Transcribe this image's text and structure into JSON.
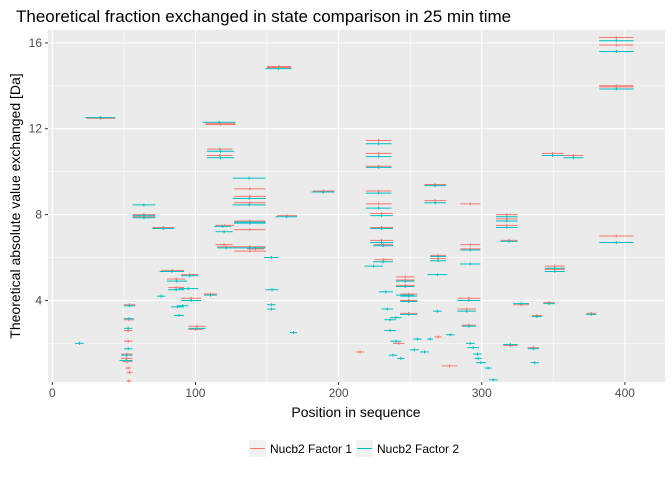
{
  "chart_data": {
    "type": "scatter",
    "title": "Theoretical fraction exchanged in state comparison in 25 min time",
    "xlabel": "Position in sequence",
    "ylabel": "Theoretical absolute value exchanged [Da]",
    "xlim": [
      -3,
      428
    ],
    "ylim": [
      0.2,
      16.6
    ],
    "x_ticks": [
      0,
      100,
      200,
      300,
      400
    ],
    "y_ticks": [
      4,
      8,
      12,
      16
    ],
    "grid": true,
    "legend_position": "bottom",
    "colors": {
      "Nucb2 Factor 1": "#F8766D",
      "Nucb2 Factor 2": "#00BFC4",
      "panel": "#EBEBEB",
      "grid": "#FFFFFF"
    },
    "series": [
      {
        "name": "Nucb2 Factor 1",
        "segments": [
          [
            24,
            44,
            12.5
          ],
          [
            24,
            44,
            12.48
          ],
          [
            107,
            128,
            12.25
          ],
          [
            107,
            128,
            12.2
          ],
          [
            108,
            126,
            11.05
          ],
          [
            108,
            126,
            10.75
          ],
          [
            127,
            149,
            9.2
          ],
          [
            127,
            149,
            8.85
          ],
          [
            127,
            149,
            8.55
          ],
          [
            127,
            149,
            7.7
          ],
          [
            127,
            149,
            7.3
          ],
          [
            127,
            149,
            6.5
          ],
          [
            127,
            149,
            6.3
          ],
          [
            150,
            167,
            14.9
          ],
          [
            150,
            167,
            14.85
          ],
          [
            157,
            171,
            7.95
          ],
          [
            182,
            197,
            9.1
          ],
          [
            182,
            197,
            9.05
          ],
          [
            219,
            237,
            11.45
          ],
          [
            219,
            237,
            10.85
          ],
          [
            219,
            237,
            10.25
          ],
          [
            219,
            237,
            9.1
          ],
          [
            219,
            237,
            8.5
          ],
          [
            222,
            238,
            8.05
          ],
          [
            222,
            238,
            7.4
          ],
          [
            222,
            238,
            6.8
          ],
          [
            225,
            238,
            6.6
          ],
          [
            225,
            238,
            5.9
          ],
          [
            240,
            253,
            5.1
          ],
          [
            240,
            253,
            4.95
          ],
          [
            240,
            253,
            4.7
          ],
          [
            243,
            255,
            4.3
          ],
          [
            243,
            255,
            4.0
          ],
          [
            243,
            255,
            3.4
          ],
          [
            260,
            275,
            9.4
          ],
          [
            260,
            275,
            8.65
          ],
          [
            264,
            275,
            6.1
          ],
          [
            264,
            275,
            5.95
          ],
          [
            285,
            299,
            8.5
          ],
          [
            285,
            299,
            6.6
          ],
          [
            285,
            299,
            6.4
          ],
          [
            310,
            325,
            8.0
          ],
          [
            310,
            325,
            7.8
          ],
          [
            310,
            325,
            7.5
          ],
          [
            313,
            325,
            6.8
          ],
          [
            342,
            357,
            10.85
          ],
          [
            344,
            358,
            5.6
          ],
          [
            344,
            358,
            5.45
          ],
          [
            357,
            371,
            10.75
          ],
          [
            382,
            406,
            16.25
          ],
          [
            382,
            406,
            15.9
          ],
          [
            382,
            406,
            14.0
          ],
          [
            382,
            406,
            13.95
          ],
          [
            382,
            406,
            7.0
          ],
          [
            56,
            72,
            8.0
          ],
          [
            56,
            72,
            7.9
          ],
          [
            70,
            85,
            7.4
          ],
          [
            76,
            92,
            5.4
          ],
          [
            80,
            93,
            5.0
          ],
          [
            81,
            92,
            4.6
          ],
          [
            90,
            102,
            5.2
          ],
          [
            90,
            104,
            4.1
          ],
          [
            95,
            107,
            2.8
          ],
          [
            95,
            105,
            2.65
          ],
          [
            106,
            115,
            4.3
          ],
          [
            114,
            127,
            7.5
          ],
          [
            114,
            126,
            6.6
          ],
          [
            115,
            128,
            6.5
          ],
          [
            136,
            148,
            6.4
          ],
          [
            48,
            56,
            1.5
          ],
          [
            48,
            56,
            1.3
          ],
          [
            49,
            56,
            1.15
          ],
          [
            51,
            55,
            0.85
          ],
          [
            52,
            56,
            0.65
          ],
          [
            52,
            55,
            0.25
          ],
          [
            50,
            58,
            3.8
          ],
          [
            50,
            57,
            3.1
          ],
          [
            50,
            56,
            2.6
          ],
          [
            50,
            56,
            2.1
          ],
          [
            283,
            299,
            4.1
          ],
          [
            283,
            296,
            3.6
          ],
          [
            286,
            296,
            2.85
          ],
          [
            315,
            325,
            1.9
          ],
          [
            322,
            333,
            3.8
          ],
          [
            335,
            342,
            3.3
          ],
          [
            332,
            340,
            1.8
          ],
          [
            343,
            351,
            3.9
          ],
          [
            373,
            380,
            3.4
          ],
          [
            212,
            218,
            1.6
          ],
          [
            238,
            246,
            2.0
          ],
          [
            267,
            272,
            2.3
          ],
          [
            272,
            283,
            0.95
          ]
        ]
      },
      {
        "name": "Nucb2 Factor 2",
        "segments": [
          [
            23,
            44,
            12.52
          ],
          [
            105,
            128,
            12.3
          ],
          [
            108,
            127,
            10.95
          ],
          [
            108,
            127,
            10.65
          ],
          [
            126,
            149,
            9.7
          ],
          [
            126,
            149,
            8.75
          ],
          [
            126,
            149,
            8.45
          ],
          [
            127,
            149,
            7.65
          ],
          [
            127,
            149,
            7.6
          ],
          [
            127,
            149,
            6.45
          ],
          [
            149,
            167,
            14.8
          ],
          [
            156,
            171,
            7.9
          ],
          [
            181,
            197,
            9.05
          ],
          [
            219,
            237,
            11.3
          ],
          [
            219,
            237,
            10.7
          ],
          [
            219,
            237,
            10.2
          ],
          [
            219,
            237,
            9.0
          ],
          [
            219,
            237,
            8.3
          ],
          [
            222,
            238,
            7.95
          ],
          [
            222,
            238,
            7.35
          ],
          [
            222,
            238,
            6.7
          ],
          [
            224,
            238,
            6.55
          ],
          [
            224,
            238,
            5.8
          ],
          [
            218,
            231,
            5.6
          ],
          [
            240,
            253,
            4.9
          ],
          [
            240,
            253,
            4.65
          ],
          [
            240,
            253,
            4.25
          ],
          [
            243,
            255,
            4.2
          ],
          [
            243,
            255,
            3.95
          ],
          [
            243,
            255,
            3.35
          ],
          [
            260,
            275,
            9.35
          ],
          [
            260,
            275,
            8.55
          ],
          [
            264,
            275,
            6.05
          ],
          [
            264,
            275,
            5.85
          ],
          [
            262,
            276,
            5.2
          ],
          [
            285,
            299,
            6.35
          ],
          [
            285,
            299,
            5.7
          ],
          [
            310,
            325,
            7.9
          ],
          [
            310,
            325,
            7.7
          ],
          [
            310,
            325,
            7.4
          ],
          [
            313,
            325,
            6.75
          ],
          [
            342,
            357,
            10.75
          ],
          [
            344,
            358,
            5.5
          ],
          [
            344,
            358,
            5.35
          ],
          [
            357,
            371,
            10.65
          ],
          [
            382,
            406,
            16.1
          ],
          [
            382,
            406,
            15.6
          ],
          [
            382,
            406,
            13.85
          ],
          [
            382,
            406,
            6.7
          ],
          [
            56,
            72,
            8.45
          ],
          [
            56,
            72,
            7.95
          ],
          [
            56,
            72,
            7.85
          ],
          [
            70,
            85,
            7.35
          ],
          [
            75,
            92,
            5.35
          ],
          [
            80,
            94,
            4.9
          ],
          [
            81,
            92,
            4.5
          ],
          [
            90,
            102,
            5.15
          ],
          [
            90,
            104,
            4.0
          ],
          [
            87,
            95,
            3.75
          ],
          [
            95,
            107,
            2.7
          ],
          [
            73,
            79,
            4.2
          ],
          [
            106,
            115,
            4.25
          ],
          [
            113,
            125,
            7.45
          ],
          [
            114,
            126,
            7.2
          ],
          [
            115,
            128,
            6.45
          ],
          [
            136,
            148,
            6.45
          ],
          [
            148,
            158,
            6.0
          ],
          [
            149,
            158,
            4.5
          ],
          [
            150,
            156,
            3.8
          ],
          [
            150,
            156,
            3.6
          ],
          [
            166,
            171,
            2.5
          ],
          [
            16,
            22,
            2.0
          ],
          [
            48,
            56,
            1.45
          ],
          [
            47,
            56,
            1.2
          ],
          [
            50,
            56,
            1.75
          ],
          [
            50,
            58,
            3.75
          ],
          [
            50,
            57,
            3.15
          ],
          [
            50,
            56,
            2.7
          ],
          [
            88,
            102,
            4.55
          ],
          [
            83,
            92,
            3.7
          ],
          [
            85,
            92,
            3.3
          ],
          [
            228,
            238,
            4.4
          ],
          [
            230,
            238,
            3.6
          ],
          [
            232,
            240,
            3.1
          ],
          [
            232,
            240,
            2.6
          ],
          [
            235,
            241,
            1.45
          ],
          [
            236,
            244,
            3.2
          ],
          [
            236,
            244,
            2.1
          ],
          [
            241,
            246,
            1.3
          ],
          [
            250,
            256,
            1.7
          ],
          [
            252,
            258,
            2.2
          ],
          [
            257,
            263,
            1.6
          ],
          [
            262,
            266,
            2.2
          ],
          [
            266,
            272,
            3.5
          ],
          [
            275,
            281,
            2.4
          ],
          [
            283,
            299,
            4.0
          ],
          [
            283,
            296,
            3.5
          ],
          [
            286,
            296,
            2.8
          ],
          [
            289,
            295,
            2.0
          ],
          [
            290,
            298,
            1.8
          ],
          [
            294,
            300,
            1.5
          ],
          [
            295,
            300,
            1.3
          ],
          [
            296,
            303,
            1.1
          ],
          [
            302,
            307,
            0.85
          ],
          [
            305,
            311,
            0.3
          ],
          [
            315,
            325,
            1.95
          ],
          [
            322,
            333,
            3.85
          ],
          [
            335,
            342,
            3.25
          ],
          [
            332,
            340,
            1.75
          ],
          [
            334,
            340,
            1.1
          ],
          [
            343,
            351,
            3.85
          ],
          [
            373,
            380,
            3.35
          ]
        ]
      }
    ]
  },
  "legend": {
    "items": [
      {
        "label": "Nucb2 Factor 1",
        "color": "#F8766D"
      },
      {
        "label": "Nucb2 Factor 2",
        "color": "#00BFC4"
      }
    ]
  }
}
